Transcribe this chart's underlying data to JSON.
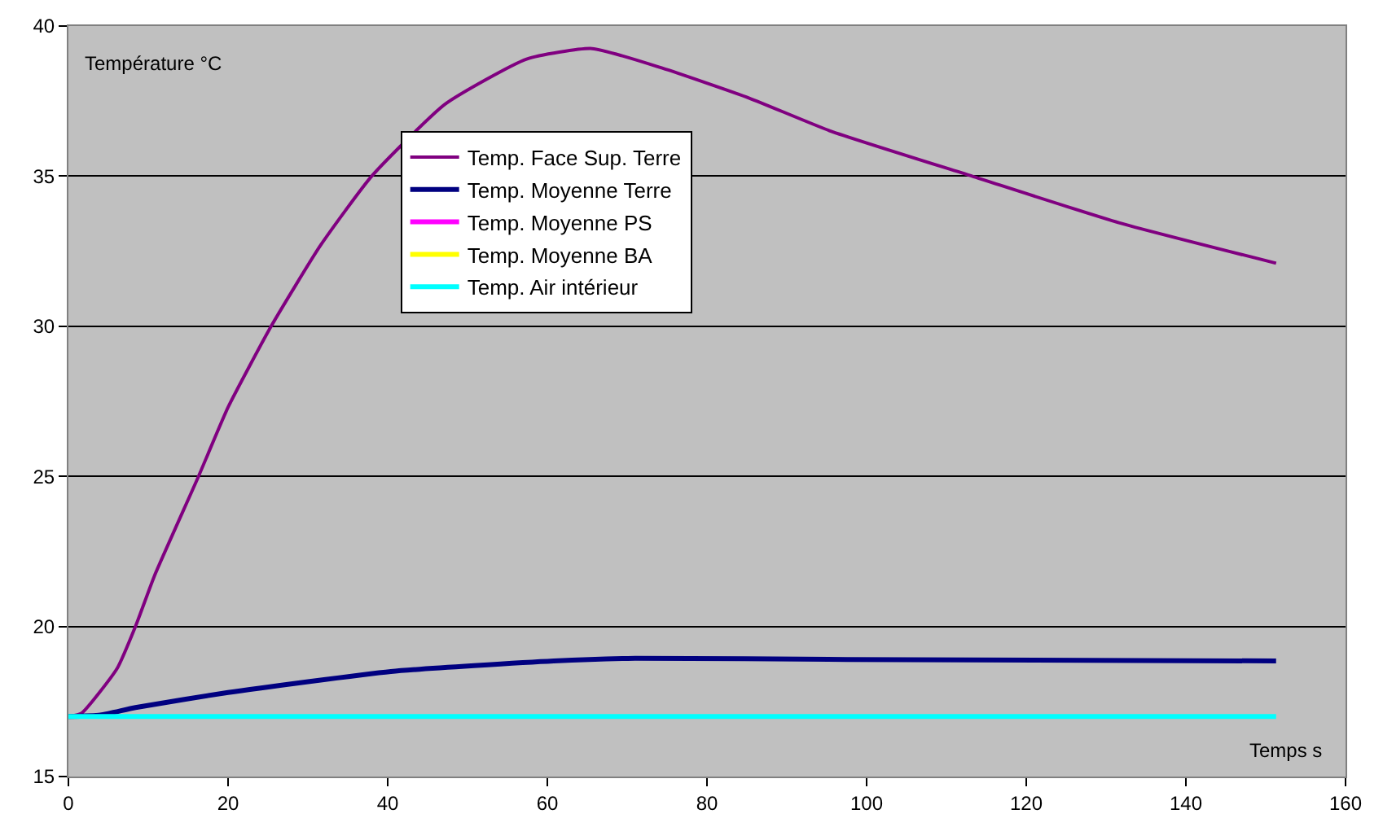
{
  "chart_data": {
    "type": "line",
    "xlabel": "Temps s",
    "ylabel": "Température °C",
    "xlim": [
      0,
      160
    ],
    "xticks": [
      0,
      20,
      40,
      60,
      80,
      100,
      120,
      140,
      160
    ],
    "ylim": [
      15,
      40
    ],
    "yticks": [
      15,
      20,
      25,
      30,
      35,
      40
    ],
    "grid": "y",
    "legend": "top",
    "marker": "none",
    "line_style": "solid",
    "series": [
      {
        "name": "Temp. Face Sup. Terre",
        "color": "#800080",
        "x": [
          0,
          1.6,
          6.1,
          8.4,
          10.8,
          16.3,
          20,
          25.4,
          31.6,
          38,
          47.2,
          57.4,
          65.6,
          74.4,
          85.3,
          95.5,
          113.2,
          131.6,
          151.3
        ],
        "values": [
          17,
          17.1,
          18.6,
          20,
          21.7,
          25,
          27.3,
          30,
          32.7,
          35,
          37.4,
          38.9,
          39.25,
          38.6,
          37.6,
          36.5,
          35,
          33.45,
          32.1
        ]
      },
      {
        "name": "Temp. Moyenne Terre",
        "color": "#000080",
        "x": [
          0,
          4,
          8.4,
          20,
          40.4,
          60.8,
          71,
          97.6,
          151.3
        ],
        "values": [
          17,
          17.05,
          17.3,
          17.8,
          18.5,
          18.85,
          18.94,
          18.9,
          18.85
        ]
      },
      {
        "name": "Temp. Moyenne PS",
        "color": "#ff00ff"
      },
      {
        "name": "Temp. Moyenne BA",
        "color": "#ffff00"
      },
      {
        "name": "Temp. Air intérieur",
        "color": "#00ffff",
        "x": [
          0,
          151.3
        ],
        "values": [
          17,
          17
        ]
      }
    ]
  }
}
